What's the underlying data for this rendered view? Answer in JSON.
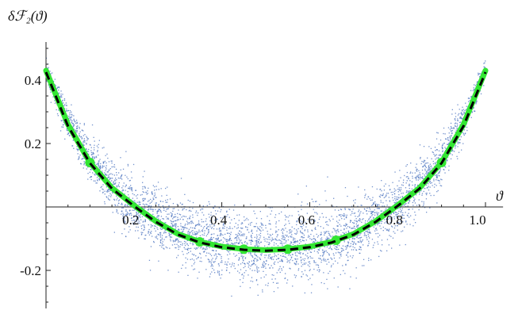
{
  "chart_data": {
    "type": "scatter",
    "title": "",
    "xlabel": "ϑ",
    "ylabel": "δℱ₂(ϑ)",
    "xlim": [
      0.0,
      1.0
    ],
    "ylim": [
      -0.32,
      0.52
    ],
    "x_ticks": [
      {
        "value": 0.2,
        "label": "0.2"
      },
      {
        "value": 0.4,
        "label": "0.4"
      },
      {
        "value": 0.6,
        "label": "0.6"
      },
      {
        "value": 0.8,
        "label": "0.8"
      },
      {
        "value": 1.0,
        "label": "1.0"
      }
    ],
    "y_ticks": [
      {
        "value": 0.4,
        "label": "0.4"
      },
      {
        "value": 0.2,
        "label": "0.2"
      },
      {
        "value": -0.2,
        "label": "-0.2"
      }
    ],
    "grid": false,
    "colors": {
      "scatter": "#5b7fc4",
      "green_curve": "#33e633",
      "dashed_curve": "#000000",
      "axis": "#222222"
    },
    "series": [
      {
        "style": "scatter-cloud",
        "x": [
          0.0,
          0.05,
          0.1,
          0.15,
          0.2,
          0.3,
          0.4,
          0.5,
          0.6,
          0.7,
          0.8,
          0.85,
          0.9,
          0.95,
          1.0
        ],
        "mean": [
          0.43,
          0.27,
          0.15,
          0.07,
          0.0,
          -0.08,
          -0.12,
          -0.135,
          -0.12,
          -0.08,
          0.0,
          0.07,
          0.15,
          0.27,
          0.43
        ],
        "spread": [
          0.02,
          0.04,
          0.05,
          0.06,
          0.065,
          0.07,
          0.07,
          0.07,
          0.07,
          0.07,
          0.065,
          0.06,
          0.05,
          0.04,
          0.02
        ]
      },
      {
        "style": "solid-thick",
        "x": [
          0.0,
          0.05,
          0.1,
          0.15,
          0.2,
          0.25,
          0.3,
          0.35,
          0.4,
          0.45,
          0.5,
          0.55,
          0.6,
          0.65,
          0.7,
          0.75,
          0.8,
          0.85,
          0.9,
          0.95,
          1.0
        ],
        "y": [
          0.43,
          0.26,
          0.14,
          0.06,
          0.005,
          -0.045,
          -0.085,
          -0.11,
          -0.125,
          -0.133,
          -0.136,
          -0.133,
          -0.125,
          -0.11,
          -0.085,
          -0.045,
          0.005,
          0.06,
          0.14,
          0.26,
          0.43
        ],
        "markers_x": [
          0.1,
          0.35,
          0.45,
          0.55,
          0.66,
          0.9
        ],
        "markers_y": [
          0.14,
          -0.11,
          -0.133,
          -0.133,
          -0.105,
          0.14
        ]
      },
      {
        "style": "dashed",
        "x": [
          0.0,
          0.05,
          0.1,
          0.15,
          0.2,
          0.25,
          0.3,
          0.35,
          0.4,
          0.45,
          0.5,
          0.55,
          0.6,
          0.65,
          0.7,
          0.75,
          0.8,
          0.85,
          0.9,
          0.95,
          1.0
        ],
        "y": [
          0.425,
          0.255,
          0.138,
          0.058,
          0.003,
          -0.047,
          -0.087,
          -0.112,
          -0.127,
          -0.135,
          -0.138,
          -0.135,
          -0.127,
          -0.112,
          -0.087,
          -0.047,
          0.003,
          0.058,
          0.138,
          0.255,
          0.425
        ]
      }
    ]
  }
}
